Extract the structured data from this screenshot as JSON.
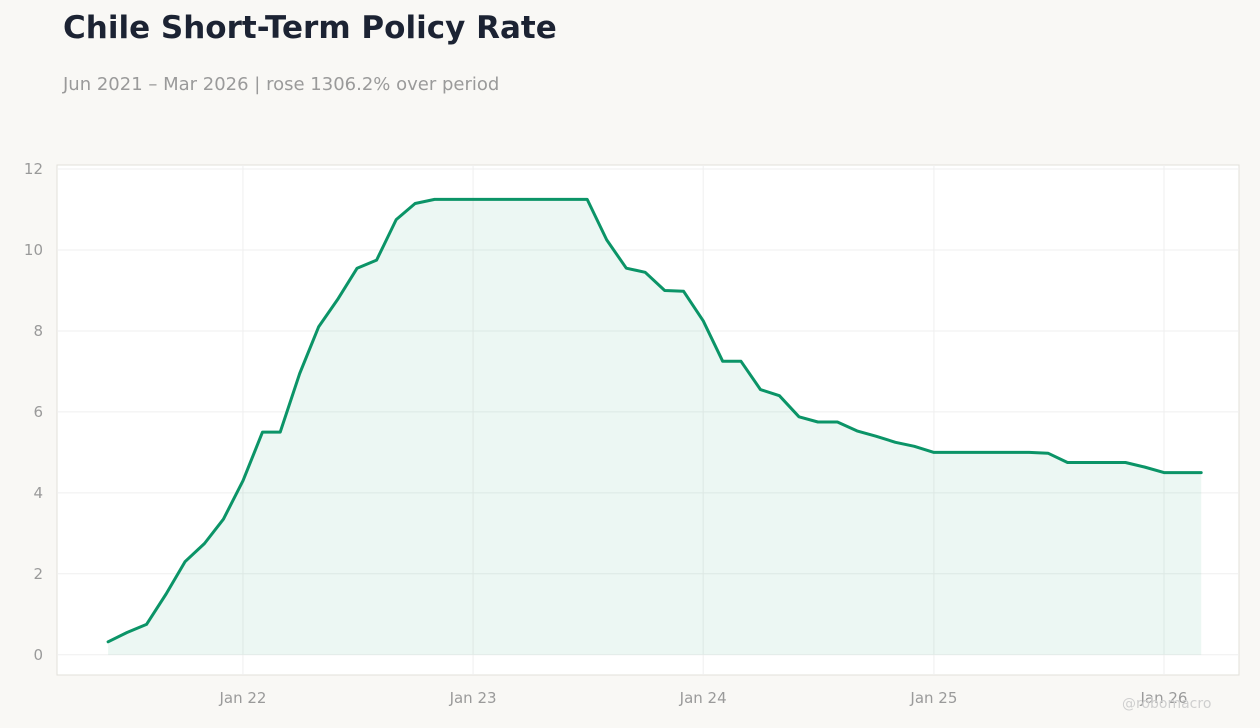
{
  "header": {
    "title": "Chile Short-Term Policy Rate",
    "subtitle": "Jun 2021 – Mar 2026 | rose 1306.2% over period"
  },
  "watermark": "@robomacro",
  "colors": {
    "line": "#0b9467",
    "fill": "rgba(11,148,103,0.08)",
    "background": "#f9f8f5",
    "plot_background": "#ffffff",
    "grid": "#efefef",
    "title": "#1c2333",
    "muted_text": "#9a9a9a"
  },
  "chart_data": {
    "type": "area",
    "title": "Chile Short-Term Policy Rate",
    "subtitle": "Jun 2021 – Mar 2026 | rose 1306.2% over period",
    "xlabel": "",
    "ylabel": "",
    "grid": true,
    "legend": "none",
    "ylim": [
      -0.5,
      12.1
    ],
    "xlim": [
      "2021-03-12",
      "2026-04-30"
    ],
    "yticks": [
      0,
      2,
      4,
      6,
      8,
      10,
      12
    ],
    "xticks": [
      {
        "date": "2022-01-01",
        "label": "Jan 22"
      },
      {
        "date": "2023-01-01",
        "label": "Jan 23"
      },
      {
        "date": "2024-01-01",
        "label": "Jan 24"
      },
      {
        "date": "2025-01-01",
        "label": "Jan 25"
      },
      {
        "date": "2026-01-01",
        "label": "Jan 26"
      }
    ],
    "x": [
      "2021-06",
      "2021-07",
      "2021-08",
      "2021-09",
      "2021-10",
      "2021-11",
      "2021-12",
      "2022-01",
      "2022-02",
      "2022-03",
      "2022-04",
      "2022-05",
      "2022-06",
      "2022-07",
      "2022-08",
      "2022-09",
      "2022-10",
      "2022-11",
      "2022-12",
      "2023-01",
      "2023-02",
      "2023-03",
      "2023-04",
      "2023-05",
      "2023-06",
      "2023-07",
      "2023-08",
      "2023-09",
      "2023-10",
      "2023-11",
      "2023-12",
      "2024-01",
      "2024-02",
      "2024-03",
      "2024-04",
      "2024-05",
      "2024-06",
      "2024-07",
      "2024-08",
      "2024-09",
      "2024-10",
      "2024-11",
      "2024-12",
      "2025-01",
      "2025-02",
      "2025-03",
      "2025-04",
      "2025-05",
      "2025-06",
      "2025-07",
      "2025-08",
      "2025-09",
      "2025-10",
      "2025-11",
      "2025-12",
      "2026-01",
      "2026-02",
      "2026-03"
    ],
    "series": [
      {
        "values": [
          0.32,
          0.55,
          0.75,
          1.5,
          2.3,
          2.75,
          3.35,
          4.3,
          5.5,
          5.5,
          6.95,
          8.1,
          8.8,
          9.55,
          9.75,
          10.75,
          11.15,
          11.25,
          11.25,
          11.25,
          11.25,
          11.25,
          11.25,
          11.25,
          11.25,
          11.25,
          10.25,
          9.55,
          9.45,
          9.0,
          8.98,
          8.25,
          7.25,
          7.25,
          6.55,
          6.4,
          5.88,
          5.75,
          5.75,
          5.53,
          5.4,
          5.25,
          5.15,
          5.0,
          5.0,
          5.0,
          5.0,
          5.0,
          5.0,
          4.98,
          4.75,
          4.75,
          4.75,
          4.75,
          4.64,
          4.5,
          4.5,
          4.5
        ]
      }
    ]
  }
}
